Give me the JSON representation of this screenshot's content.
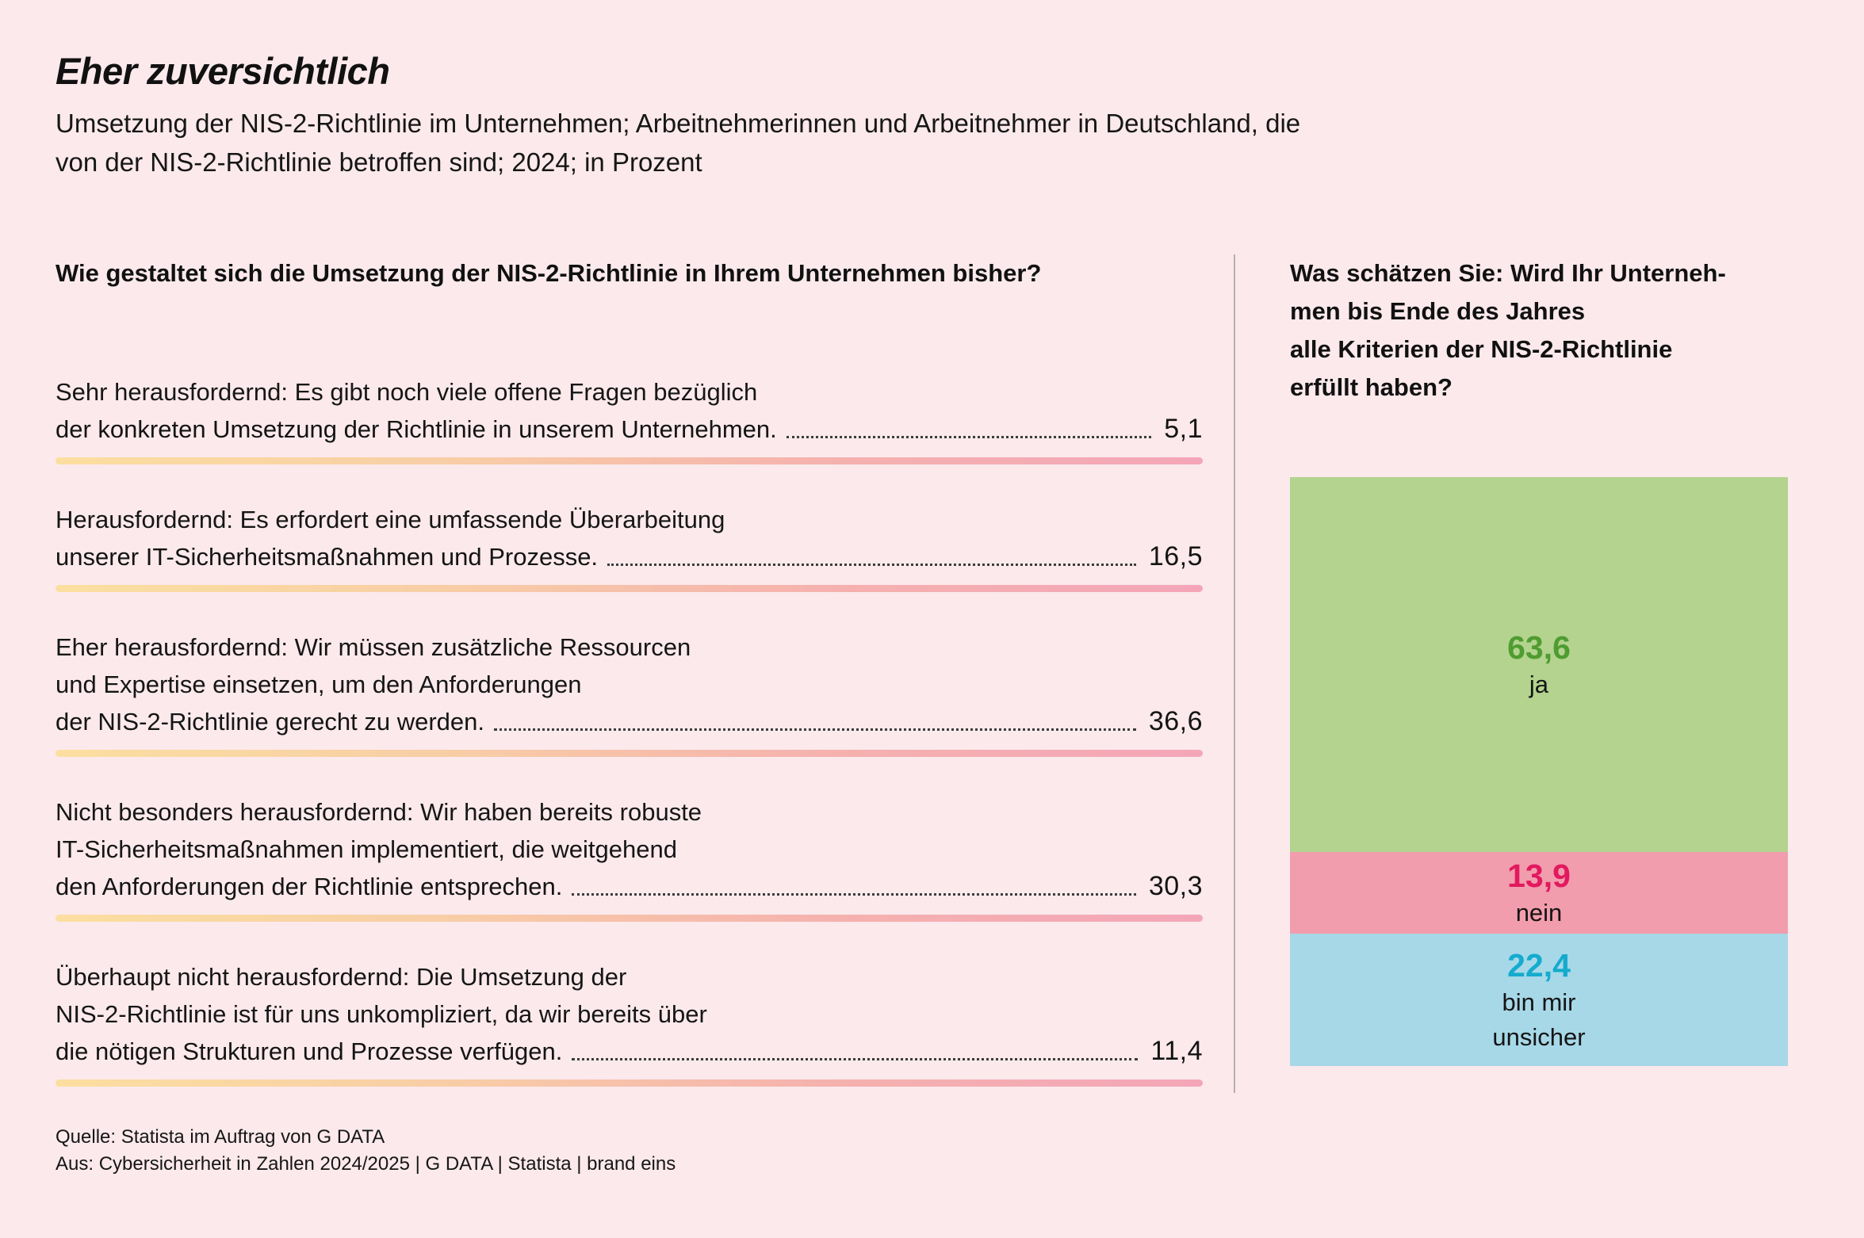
{
  "header": {
    "title": "Eher zuversichtlich",
    "subtitle_line1": "Umsetzung der NIS-2-Richtlinie im Unternehmen; Arbeitnehmerinnen und Arbeitnehmer in Deutschland, die",
    "subtitle_line2": "von der NIS-2-Richtlinie betroffen sind; 2024; in Prozent"
  },
  "left": {
    "question": "Wie gestaltet sich die Umsetzung der NIS-2-Richtlinie in Ihrem Unternehmen bisher?",
    "items": [
      {
        "lines": [
          "Sehr herausfordernd: Es gibt noch viele offene Fragen bezüglich"
        ],
        "last_line": "der konkreten Umsetzung der Richtlinie in unserem Unternehmen.",
        "value": "5,1"
      },
      {
        "lines": [
          "Herausfordernd: Es erfordert eine umfassende Überarbeitung"
        ],
        "last_line": "unserer IT-Sicherheitsmaßnahmen und Prozesse.",
        "value": "16,5"
      },
      {
        "lines": [
          "Eher herausfordernd: Wir müssen zusätzliche Ressourcen",
          "und Expertise einsetzen, um den Anforderungen"
        ],
        "last_line": "der NIS-2-Richtlinie gerecht zu werden.",
        "value": "36,6"
      },
      {
        "lines": [
          "Nicht besonders herausfordernd: Wir haben bereits robuste",
          "IT-Sicherheitsmaßnahmen implementiert, die weitgehend"
        ],
        "last_line": "den Anforderungen der Richtlinie entsprechen.",
        "value": "30,3"
      },
      {
        "lines": [
          "Überhaupt nicht herausfordernd: Die Umsetzung der",
          "NIS-2-Richtlinie ist für uns unkompliziert, da wir bereits über"
        ],
        "last_line": "die nötigen Strukturen und Prozesse verfügen.",
        "value": "11,4"
      }
    ]
  },
  "right": {
    "question_lines": [
      "Was schätzen Sie: Wird Ihr Unterneh-",
      "men bis Ende des Jahres",
      "alle Kriterien der NIS-2-Richtlinie",
      "erfüllt haben?"
    ],
    "segments": [
      {
        "label": "ja",
        "value": 63.6,
        "value_label": "63,6",
        "bg": "#b3d38e",
        "value_color": "#4f9c31"
      },
      {
        "label": "nein",
        "value": 13.9,
        "value_label": "13,9",
        "bg": "#f29dad",
        "value_color": "#e2195f"
      },
      {
        "label": "bin mir\nunsicher",
        "value": 22.4,
        "value_label": "22,4",
        "bg": "#a7d8e8",
        "value_color": "#14abce"
      }
    ]
  },
  "footer": {
    "source1": "Quelle: Statista im Auftrag von G DATA",
    "source2": "Aus: Cybersicherheit in Zahlen 2024/2025 | G DATA | Statista | brand eins"
  },
  "colors": {
    "background": "#fbe9ec",
    "gradient_bar_start": "#fbdfa0",
    "gradient_bar_end": "#f4a6b8",
    "divider": "#b5b0ae"
  },
  "chart_data": [
    {
      "type": "bar",
      "title": "Wie gestaltet sich die Umsetzung der NIS-2-Richtlinie in Ihrem Unternehmen bisher?",
      "categories": [
        "Sehr herausfordernd: Es gibt noch viele offene Fragen bezüglich der konkreten Umsetzung der Richtlinie in unserem Unternehmen.",
        "Herausfordernd: Es erfordert eine umfassende Überarbeitung unserer IT-Sicherheitsmaßnahmen und Prozesse.",
        "Eher herausfordernd: Wir müssen zusätzliche Ressourcen und Expertise einsetzen, um den Anforderungen der NIS-2-Richtlinie gerecht zu werden.",
        "Nicht besonders herausfordernd: Wir haben bereits robuste IT-Sicherheitsmaßnahmen implementiert, die weitgehend den Anforderungen der Richtlinie entsprechen.",
        "Überhaupt nicht herausfordernd: Die Umsetzung der NIS-2-Richtlinie ist für uns unkompliziert, da wir bereits über die nötigen Strukturen und Prozesse verfügen."
      ],
      "values": [
        5.1,
        16.5,
        36.6,
        30.3,
        11.4
      ],
      "xlabel": "",
      "ylabel": "Prozent",
      "unit": "%"
    },
    {
      "type": "bar",
      "subtype": "stacked-single-column",
      "title": "Was schätzen Sie: Wird Ihr Unternehmen bis Ende des Jahres alle Kriterien der NIS-2-Richtlinie erfüllt haben?",
      "categories": [
        "ja",
        "nein",
        "bin mir unsicher"
      ],
      "values": [
        63.6,
        13.9,
        22.4
      ],
      "colors": [
        "#b3d38e",
        "#f29dad",
        "#a7d8e8"
      ],
      "unit": "%"
    }
  ]
}
